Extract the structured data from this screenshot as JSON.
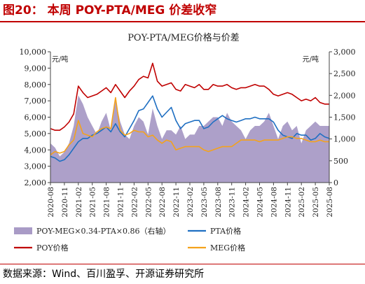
{
  "figure": {
    "label": "图20：",
    "title": "本周 POY-PTA/MEG 价差收窄",
    "source": "数据来源：Wind、百川盈孚、开源证券研究所"
  },
  "chart_data": {
    "type": "line",
    "title": "POY-PTA/MEG价格与价差",
    "y_left_unit": "元/吨",
    "y_right_unit": "元/吨",
    "ylim_left": [
      2000,
      10000
    ],
    "ylim_right": [
      0,
      3000
    ],
    "y_left_ticks": [
      "2,000",
      "3,000",
      "4,000",
      "5,000",
      "6,000",
      "7,000",
      "8,000",
      "9,000",
      "10,000"
    ],
    "y_right_ticks": [
      "0",
      "500",
      "1,000",
      "1,500",
      "2,000",
      "2,500",
      "3,000"
    ],
    "x_ticks": [
      "2020-08",
      "2020-11",
      "2021-02",
      "2021-05",
      "2021-08",
      "2021-11",
      "2022-02",
      "2022-05",
      "2022-08",
      "2022-11",
      "2023-02",
      "2023-05",
      "2023-08",
      "2023-11",
      "2024-02",
      "2024-05",
      "2024-08",
      "2024-11",
      "2025-02",
      "2025-05",
      "2025-08"
    ],
    "legend_placement": "bottom",
    "grid": false,
    "colors": {
      "spread": "#a99bc6",
      "poy": "#c00000",
      "pta": "#1f6fc2",
      "meg": "#f4a21c"
    },
    "series": [
      {
        "name": "POY-MEG×0.34-PTA×0.86（右轴）",
        "kind": "area",
        "axis": "right",
        "x": [
          "2020-08",
          "2020-09",
          "2020-10",
          "2020-11",
          "2020-12",
          "2021-01",
          "2021-02",
          "2021-03",
          "2021-04",
          "2021-05",
          "2021-06",
          "2021-07",
          "2021-08",
          "2021-09",
          "2021-10",
          "2021-11",
          "2021-12",
          "2022-01",
          "2022-02",
          "2022-03",
          "2022-04",
          "2022-05",
          "2022-06",
          "2022-07",
          "2022-08",
          "2022-09",
          "2022-10",
          "2022-11",
          "2022-12",
          "2023-01",
          "2023-02",
          "2023-03",
          "2023-04",
          "2023-05",
          "2023-06",
          "2023-07",
          "2023-08",
          "2023-09",
          "2023-10",
          "2023-11",
          "2023-12",
          "2024-01",
          "2024-02",
          "2024-03",
          "2024-04",
          "2024-05",
          "2024-06",
          "2024-07",
          "2024-08",
          "2024-09",
          "2024-10",
          "2024-11",
          "2024-12",
          "2025-01",
          "2025-02",
          "2025-03",
          "2025-04",
          "2025-05",
          "2025-06",
          "2025-07",
          "2025-08"
        ],
        "values": [
          900,
          800,
          600,
          700,
          900,
          1300,
          2000,
          1800,
          1500,
          1300,
          1100,
          1400,
          1600,
          1200,
          1900,
          1400,
          1100,
          1000,
          1300,
          1500,
          1400,
          1100,
          1700,
          1300,
          1000,
          1200,
          1200,
          1100,
          1300,
          1000,
          1100,
          1100,
          1300,
          1300,
          1400,
          1500,
          1500,
          1300,
          1600,
          1400,
          1300,
          1200,
          1000,
          1200,
          1300,
          1300,
          1400,
          1600,
          1300,
          1000,
          1300,
          1400,
          1200,
          1300,
          900,
          1200,
          1300,
          1400,
          1300,
          1300,
          1300
        ]
      },
      {
        "name": "PTA价格",
        "kind": "line",
        "axis": "left",
        "x": [
          "2020-08",
          "2020-09",
          "2020-10",
          "2020-11",
          "2020-12",
          "2021-01",
          "2021-02",
          "2021-03",
          "2021-04",
          "2021-05",
          "2021-06",
          "2021-07",
          "2021-08",
          "2021-09",
          "2021-10",
          "2021-11",
          "2021-12",
          "2022-01",
          "2022-02",
          "2022-03",
          "2022-04",
          "2022-05",
          "2022-06",
          "2022-07",
          "2022-08",
          "2022-09",
          "2022-10",
          "2022-11",
          "2022-12",
          "2023-01",
          "2023-02",
          "2023-03",
          "2023-04",
          "2023-05",
          "2023-06",
          "2023-07",
          "2023-08",
          "2023-09",
          "2023-10",
          "2023-11",
          "2023-12",
          "2024-01",
          "2024-02",
          "2024-03",
          "2024-04",
          "2024-05",
          "2024-06",
          "2024-07",
          "2024-08",
          "2024-09",
          "2024-10",
          "2024-11",
          "2024-12",
          "2025-01",
          "2025-02",
          "2025-03",
          "2025-04",
          "2025-05",
          "2025-06",
          "2025-07",
          "2025-08"
        ],
        "values": [
          3600,
          3500,
          3300,
          3400,
          3700,
          4100,
          4500,
          4700,
          4700,
          4900,
          5000,
          5200,
          5400,
          5100,
          5600,
          5100,
          4800,
          5300,
          5800,
          6400,
          6500,
          6900,
          7300,
          6500,
          6000,
          6300,
          6600,
          5800,
          5300,
          5600,
          5700,
          5800,
          5800,
          5300,
          5400,
          5700,
          5900,
          6100,
          5900,
          5800,
          5700,
          5800,
          5900,
          5900,
          6000,
          5900,
          5900,
          5900,
          5700,
          5200,
          4900,
          4800,
          4700,
          5000,
          4900,
          4900,
          4600,
          4700,
          5000,
          4800,
          4700
        ]
      },
      {
        "name": "POY价格",
        "kind": "line",
        "axis": "left",
        "x": [
          "2020-08",
          "2020-09",
          "2020-10",
          "2020-11",
          "2020-12",
          "2021-01",
          "2021-02",
          "2021-03",
          "2021-04",
          "2021-05",
          "2021-06",
          "2021-07",
          "2021-08",
          "2021-09",
          "2021-10",
          "2021-11",
          "2021-12",
          "2022-01",
          "2022-02",
          "2022-03",
          "2022-04",
          "2022-05",
          "2022-06",
          "2022-07",
          "2022-08",
          "2022-09",
          "2022-10",
          "2022-11",
          "2022-12",
          "2023-01",
          "2023-02",
          "2023-03",
          "2023-04",
          "2023-05",
          "2023-06",
          "2023-07",
          "2023-08",
          "2023-09",
          "2023-10",
          "2023-11",
          "2023-12",
          "2024-01",
          "2024-02",
          "2024-03",
          "2024-04",
          "2024-05",
          "2024-06",
          "2024-07",
          "2024-08",
          "2024-09",
          "2024-10",
          "2024-11",
          "2024-12",
          "2025-01",
          "2025-02",
          "2025-03",
          "2025-04",
          "2025-05",
          "2025-06",
          "2025-07",
          "2025-08"
        ],
        "values": [
          5300,
          5200,
          5200,
          5400,
          5700,
          6200,
          7900,
          7500,
          7200,
          7300,
          7400,
          7600,
          7800,
          7500,
          8000,
          7600,
          7200,
          7600,
          7900,
          8300,
          8500,
          8400,
          9300,
          8200,
          7900,
          8000,
          8100,
          7700,
          7600,
          8000,
          7900,
          7800,
          8000,
          7700,
          7700,
          8000,
          7900,
          7900,
          8000,
          7800,
          7700,
          7800,
          7800,
          7900,
          8000,
          7900,
          7900,
          7700,
          7400,
          7300,
          7400,
          7500,
          7400,
          7200,
          7000,
          7100,
          7000,
          7200,
          6900,
          6800,
          6800
        ]
      },
      {
        "name": "MEG价格",
        "kind": "line",
        "axis": "left",
        "x": [
          "2020-08",
          "2020-09",
          "2020-10",
          "2020-11",
          "2020-12",
          "2021-01",
          "2021-02",
          "2021-03",
          "2021-04",
          "2021-05",
          "2021-06",
          "2021-07",
          "2021-08",
          "2021-09",
          "2021-10",
          "2021-11",
          "2021-12",
          "2022-01",
          "2022-02",
          "2022-03",
          "2022-04",
          "2022-05",
          "2022-06",
          "2022-07",
          "2022-08",
          "2022-09",
          "2022-10",
          "2022-11",
          "2022-12",
          "2023-01",
          "2023-02",
          "2023-03",
          "2023-04",
          "2023-05",
          "2023-06",
          "2023-07",
          "2023-08",
          "2023-09",
          "2023-10",
          "2023-11",
          "2023-12",
          "2024-01",
          "2024-02",
          "2024-03",
          "2024-04",
          "2024-05",
          "2024-06",
          "2024-07",
          "2024-08",
          "2024-09",
          "2024-10",
          "2024-11",
          "2024-12",
          "2025-01",
          "2025-02",
          "2025-03",
          "2025-04",
          "2025-05",
          "2025-06",
          "2025-07",
          "2025-08"
        ],
        "values": [
          3700,
          3900,
          3800,
          3900,
          4300,
          4600,
          5800,
          5000,
          4900,
          4800,
          5100,
          5300,
          5400,
          5300,
          7200,
          5200,
          4900,
          5000,
          5200,
          5100,
          5100,
          4800,
          4900,
          4600,
          4400,
          4600,
          4500,
          4000,
          4100,
          4200,
          4200,
          4200,
          4200,
          4000,
          3900,
          4000,
          4100,
          4200,
          4200,
          4200,
          4400,
          4600,
          4600,
          4600,
          4600,
          4500,
          4600,
          4600,
          4600,
          4600,
          4700,
          4800,
          4800,
          4700,
          4700,
          4600,
          4500,
          4500,
          4600,
          4500,
          4500
        ]
      }
    ]
  }
}
